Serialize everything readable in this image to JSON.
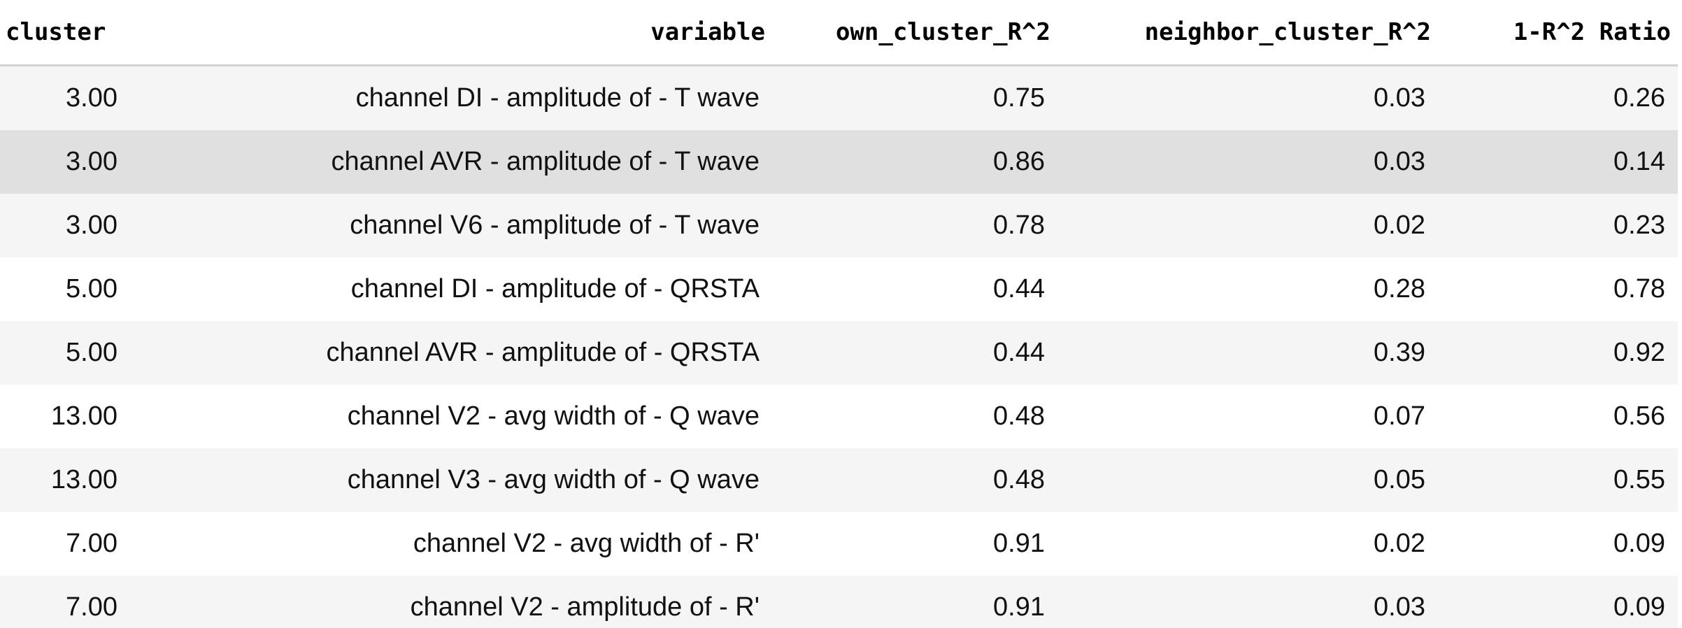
{
  "table": {
    "headers": {
      "cluster": "cluster",
      "variable": "variable",
      "own": "own_cluster_R^2",
      "neighbor": "neighbor_cluster_R^2",
      "ratio": "1-R^2 Ratio"
    },
    "rows": [
      {
        "cluster": "3.00",
        "variable": "channel DI - amplitude of - T wave",
        "own": "0.75",
        "neighbor": "0.03",
        "ratio": "0.26"
      },
      {
        "cluster": "3.00",
        "variable": "channel AVR - amplitude of - T wave",
        "own": "0.86",
        "neighbor": "0.03",
        "ratio": "0.14"
      },
      {
        "cluster": "3.00",
        "variable": "channel V6 - amplitude of - T wave",
        "own": "0.78",
        "neighbor": "0.02",
        "ratio": "0.23"
      },
      {
        "cluster": "5.00",
        "variable": "channel DI - amplitude of - QRSTA",
        "own": "0.44",
        "neighbor": "0.28",
        "ratio": "0.78"
      },
      {
        "cluster": "5.00",
        "variable": "channel AVR - amplitude of - QRSTA",
        "own": "0.44",
        "neighbor": "0.39",
        "ratio": "0.92"
      },
      {
        "cluster": "13.00",
        "variable": "channel V2 - avg width of - Q wave",
        "own": "0.48",
        "neighbor": "0.07",
        "ratio": "0.56"
      },
      {
        "cluster": "13.00",
        "variable": "channel V3 - avg width of - Q wave",
        "own": "0.48",
        "neighbor": "0.05",
        "ratio": "0.55"
      },
      {
        "cluster": "7.00",
        "variable": "channel V2 - avg width of - R'",
        "own": "0.91",
        "neighbor": "0.02",
        "ratio": "0.09"
      },
      {
        "cluster": "7.00",
        "variable": "channel V2 - amplitude of - R'",
        "own": "0.91",
        "neighbor": "0.03",
        "ratio": "0.09"
      }
    ]
  },
  "colors": {
    "row_stripe": "#f5f5f5",
    "row_hover": "#e0e0e0",
    "header_border": "#d2d2d2"
  }
}
